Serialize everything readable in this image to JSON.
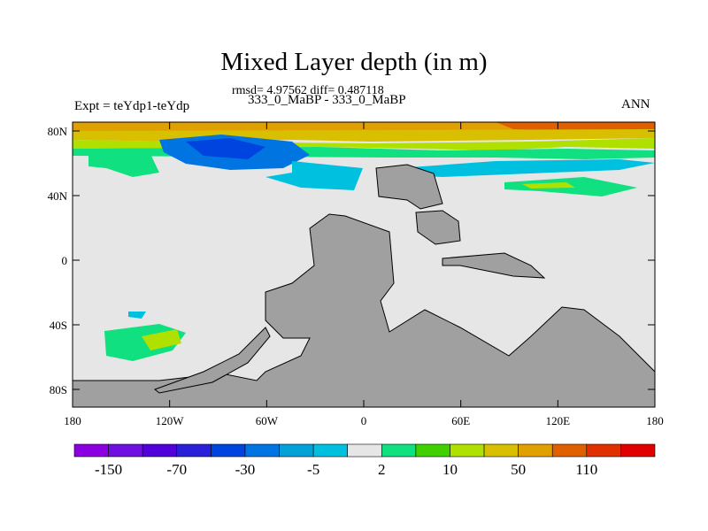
{
  "title": "Mixed Layer depth (in m)",
  "stats": "rmsd= 4.97562 diff= 0.487118",
  "subtitle": "333_0_MaBP - 333_0_MaBP",
  "left_label": "Expt = teYdp1-teYdp",
  "right_label": "ANN",
  "lat_ticks": [
    "80N",
    "40N",
    "0",
    "40S",
    "80S"
  ],
  "lon_ticks": [
    "180",
    "120W",
    "60W",
    "0",
    "60E",
    "120E",
    "180"
  ],
  "colorbar": {
    "colors": [
      "#8a00e0",
      "#6e10e0",
      "#5000d8",
      "#2a20d8",
      "#0044e0",
      "#0074e0",
      "#00a2d8",
      "#00c0e0",
      "#e6e6e6",
      "#10e080",
      "#40d000",
      "#b0e000",
      "#d8c000",
      "#e0a000",
      "#e06000",
      "#e03000",
      "#e00000"
    ],
    "labels": [
      "-150",
      "-70",
      "-30",
      "-5",
      "2",
      "10",
      "50",
      "110"
    ]
  },
  "land_color": "#a0a0a0",
  "ocean_color": "#e6e6e6"
}
